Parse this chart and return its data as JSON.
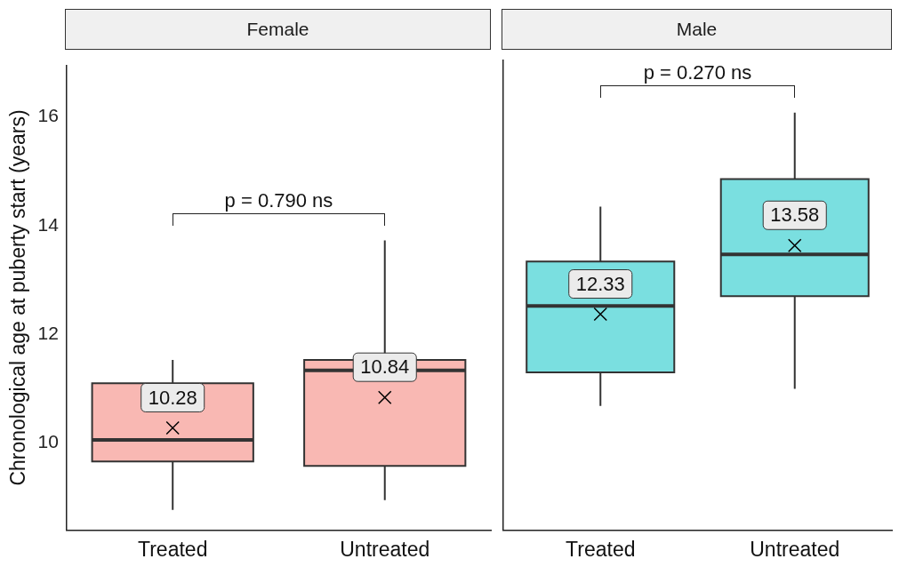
{
  "chart_data": [
    {
      "type": "box",
      "title": "Female",
      "ylabel": "Chronological age at puberty start (years)",
      "categories": [
        "Treated",
        "Untreated"
      ],
      "series": [
        {
          "color": "#f9b8b3",
          "boxes": [
            {
              "low": 8.77,
              "q1": 9.66,
              "median": 10.06,
              "q3": 11.1,
              "high": 11.53,
              "mean": 10.28
            },
            {
              "low": 8.95,
              "q1": 9.58,
              "median": 11.34,
              "q3": 11.53,
              "high": 13.73,
              "mean": 10.84
            }
          ]
        }
      ],
      "ylim": [
        8.4,
        16.95
      ],
      "yticks": [
        10,
        12,
        14,
        16
      ],
      "grid": false,
      "marker": "cross",
      "annotations": [
        "p = 0.790 ns",
        "10.28",
        "10.84"
      ]
    },
    {
      "type": "box",
      "title": "Male",
      "categories": [
        "Treated",
        "Untreated"
      ],
      "series": [
        {
          "color": "#7adfe0",
          "boxes": [
            {
              "low": 10.66,
              "q1": 11.27,
              "median": 12.48,
              "q3": 13.29,
              "high": 14.29,
              "mean": 12.33
            },
            {
              "low": 10.97,
              "q1": 12.66,
              "median": 13.42,
              "q3": 14.79,
              "high": 16.0,
              "mean": 13.58
            }
          ]
        }
      ],
      "ylim": [
        8.4,
        16.95
      ],
      "yticks": [
        10,
        12,
        14,
        16
      ],
      "grid": false,
      "marker": "cross",
      "tick_labels": "x",
      "annotations": [
        "p = 0.270 ns",
        "12.33",
        "13.58"
      ]
    }
  ]
}
